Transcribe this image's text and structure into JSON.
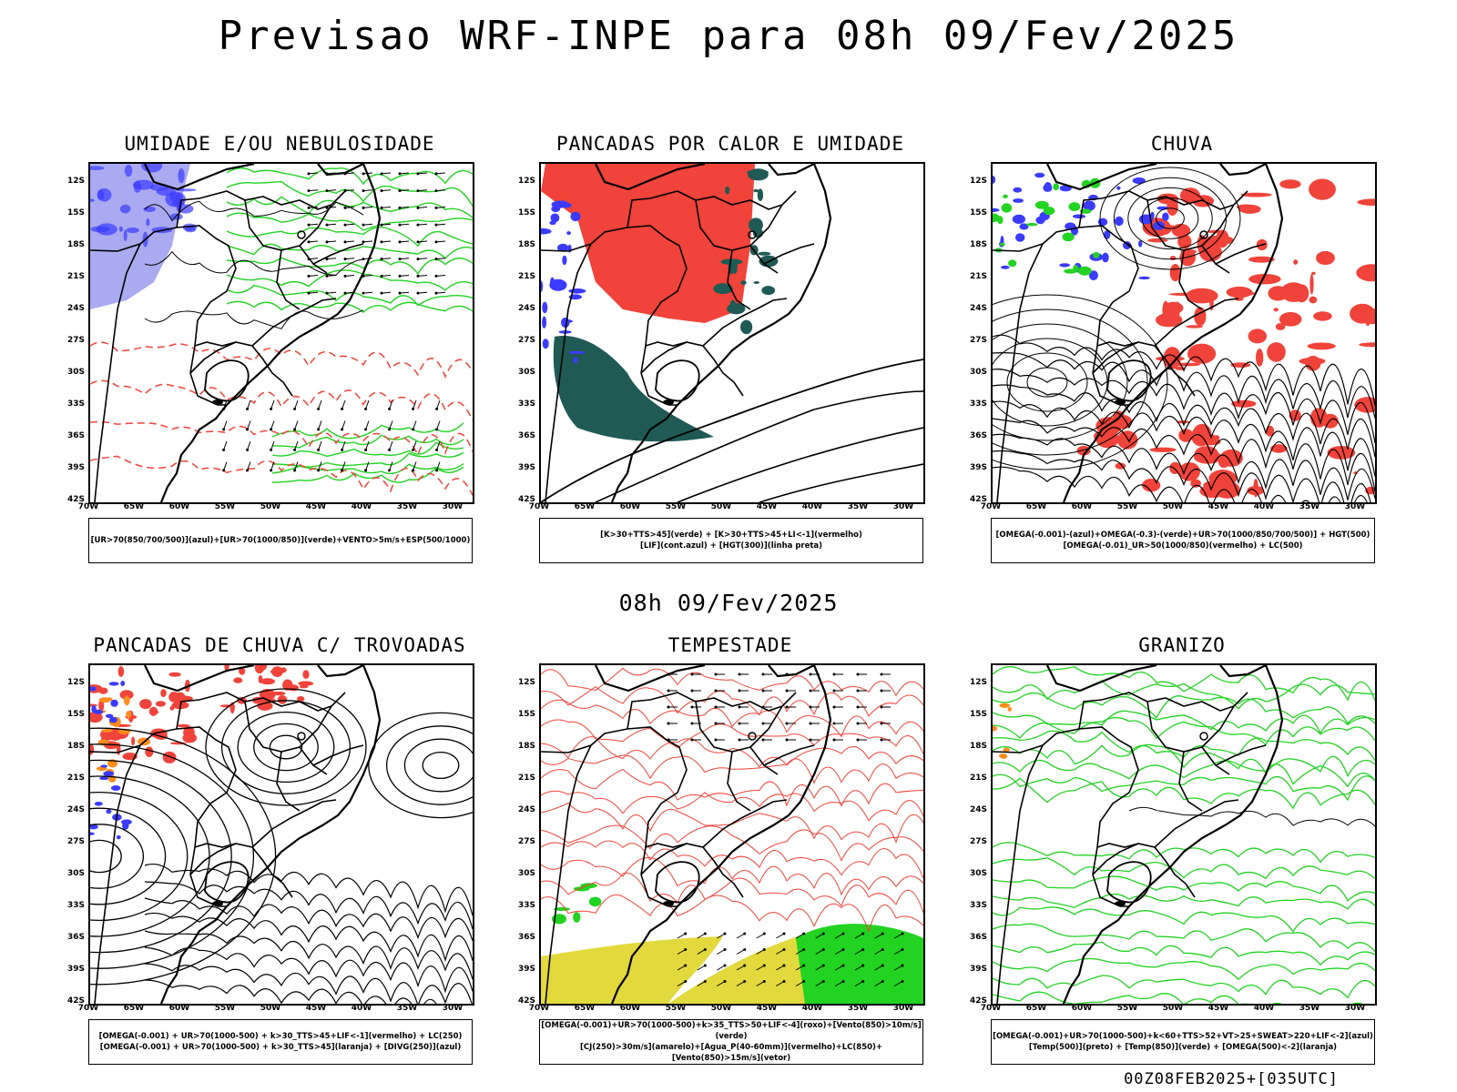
{
  "main_title": "Previsao WRF-INPE  para 08h 09/Fev/2025",
  "mid_title": "08h 09/Fev/2025",
  "footer": "00Z08FEB2025+[035UTC]",
  "lat_labels": [
    "12S",
    "15S",
    "18S",
    "21S",
    "24S",
    "27S",
    "30S",
    "33S",
    "36S",
    "39S",
    "42S"
  ],
  "lon_labels": [
    "70W",
    "65W",
    "60W",
    "55W",
    "50W",
    "45W",
    "40W",
    "35W",
    "30W"
  ],
  "colors": {
    "red": "#f0433a",
    "green": "#22d322",
    "blue": "#3b3bff",
    "lavender": "#a9aaf0",
    "darkteal": "#1f5a55",
    "yellow": "#e2d93c",
    "orange": "#ff8c1a",
    "purple": "#a020f0"
  },
  "panels": [
    {
      "title": "UMIDADE E/OU NEBULOSIDADE",
      "legend": [
        "[UR>70(850/700/500)](azul)+[UR>70(1000/850)](verde)+VENTO>5m/s+ESP(500/1000)"
      ]
    },
    {
      "title": "PANCADAS POR CALOR E UMIDADE",
      "legend": [
        "[K>30+TTS>45](verde) + [K>30+TTS>45+LI<-1](vermelho)",
        "[LIF](cont.azul) + [HGT(300)](linha preta)"
      ]
    },
    {
      "title": "CHUVA",
      "legend": [
        "[OMEGA(-0.001)-(azul)+OMEGA(-0.3)-(verde)+UR>70(1000/850/700/500)] + HGT(500)",
        "[OMEGA(-0.01)_UR>50(1000/850)(vermelho) + LC(500)"
      ]
    },
    {
      "title": "PANCADAS DE CHUVA C/ TROVOADAS",
      "legend": [
        "[OMEGA(-0.001) + UR>70(1000-500) + k>30_TTS>45+LIF<-1](vermelho) + LC(250)",
        "[OMEGA(-0.001) + UR>70(1000-500) + k>30_TTS>45](laranja) + [DIVG(250)](azul)"
      ]
    },
    {
      "title": "TEMPESTADE",
      "legend": [
        "[OMEGA(-0.001)+UR>70(1000-500)+k>35_TTS>50+LIF<-4](roxo)+[Vento(850)>10m/s](verde)",
        "[CJ(250)>30m/s](amarelo)+[Agua_P(40-60mm)](vermelho)+LC(850)+[Vento(850)>15m/s](vetor)"
      ]
    },
    {
      "title": "GRANIZO",
      "legend": [
        "[OMEGA(-0.001)+UR>70(1000-500)+k<60+TTS>52+VT>25+SWEAT>220+LIF<-2](azul)",
        "[Temp(500)](preto) + [Temp(850)](verde) + [OMEGA(500)<-2](laranja)"
      ]
    }
  ]
}
